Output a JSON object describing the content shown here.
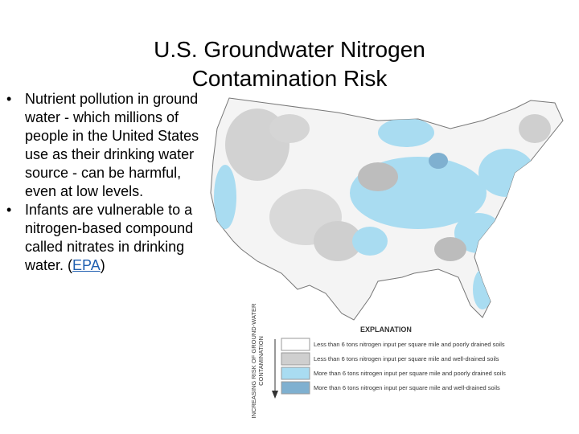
{
  "header": {
    "title": "U.S. Groundwater Nitrogen Contamination Risk"
  },
  "bullets": [
    {
      "text": "Nutrient pollution in ground water - which millions of people in the United States use as their drinking water source - can be harmful, even at low levels."
    },
    {
      "text_before": "Infants are vulnerable to a nitrogen-based compound called nitrates in drinking water. (",
      "link": "EPA",
      "text_after": ")"
    }
  ],
  "legend": {
    "axis_label": "INCREASING RISK OF GROUND-WATER CONTAMINATION",
    "title": "EXPLANATION",
    "items": [
      "Less than 6 tons nitrogen input per square mile and poorly drained soils",
      "Less than 6 tons nitrogen input per square mile and well-drained soils",
      "More than 6 tons nitrogen input per square mile and poorly drained soils",
      "More than 6 tons nitrogen input per square mile and well-drained soils"
    ]
  }
}
